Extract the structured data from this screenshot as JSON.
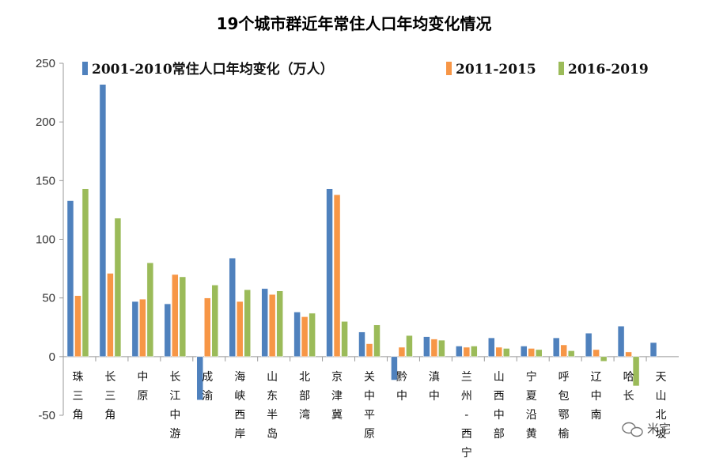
{
  "chart_data": {
    "type": "bar",
    "title": "19个城市群近年常住人口年均变化情况",
    "xlabel": "",
    "ylabel": "",
    "ylim": [
      -50,
      250
    ],
    "yticks": [
      "-50",
      "0",
      "50",
      "100",
      "150",
      "200",
      "250"
    ],
    "yticks_values": [
      -50,
      0,
      50,
      100,
      150,
      200,
      250
    ],
    "grid": false,
    "legend_placement": "top",
    "categories": [
      "珠三角",
      "长三角",
      "中原",
      "长江中游",
      "成渝",
      "海峡西岸",
      "山东半岛",
      "北部湾",
      "京津冀",
      "关中平原",
      "黔中",
      "滇中",
      "兰州-西宁",
      "山西中部",
      "宁夏沿黄",
      "呼包鄂榆",
      "辽中南",
      "哈长",
      "天山北坡"
    ],
    "series": [
      {
        "name": "2001-2010常住人口年均变化（万人）",
        "color": "#4f81bd",
        "values": [
          133,
          232,
          47,
          45,
          -37,
          84,
          58,
          38,
          143,
          21,
          -20,
          17,
          9,
          16,
          9,
          16,
          20,
          26,
          12
        ]
      },
      {
        "name": "2011-2015",
        "color": "#f79646",
        "values": [
          52,
          71,
          49,
          70,
          50,
          47,
          53,
          34,
          138,
          11,
          8,
          15,
          8,
          8,
          7,
          10,
          6,
          4,
          0
        ]
      },
      {
        "name": "2016-2019",
        "color": "#9bbb59",
        "values": [
          143,
          118,
          80,
          68,
          61,
          57,
          56,
          37,
          30,
          27,
          18,
          14,
          9,
          7,
          6,
          5,
          -4,
          -25,
          0
        ]
      }
    ]
  },
  "watermark": {
    "text": "米宅"
  }
}
